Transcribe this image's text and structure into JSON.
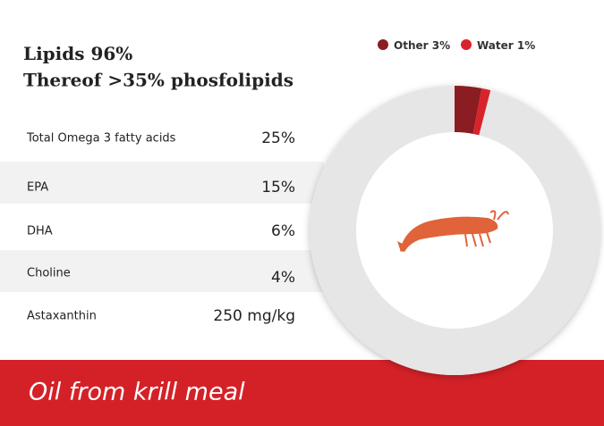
{
  "chart_data": {
    "type": "donut",
    "categories": [
      "Lipids",
      "Other",
      "Water"
    ],
    "values": [
      96,
      3,
      1
    ],
    "value_labels": [
      "96%",
      "3%",
      "1%"
    ],
    "colors": [
      "#e6e6e6",
      "#8b1c22",
      "#d9232b"
    ],
    "subtitle": "Thereof >35% phosfolipids"
  },
  "table": {
    "rows": [
      [
        "Total Omega 3 fatty acids",
        "25%"
      ],
      [
        "EPA",
        "15%"
      ],
      [
        "DHA",
        "6%"
      ],
      [
        "Choline",
        "4%"
      ],
      [
        "Astaxanthin",
        "250 mg/kg"
      ]
    ]
  },
  "banner": "Oil from krill meal"
}
